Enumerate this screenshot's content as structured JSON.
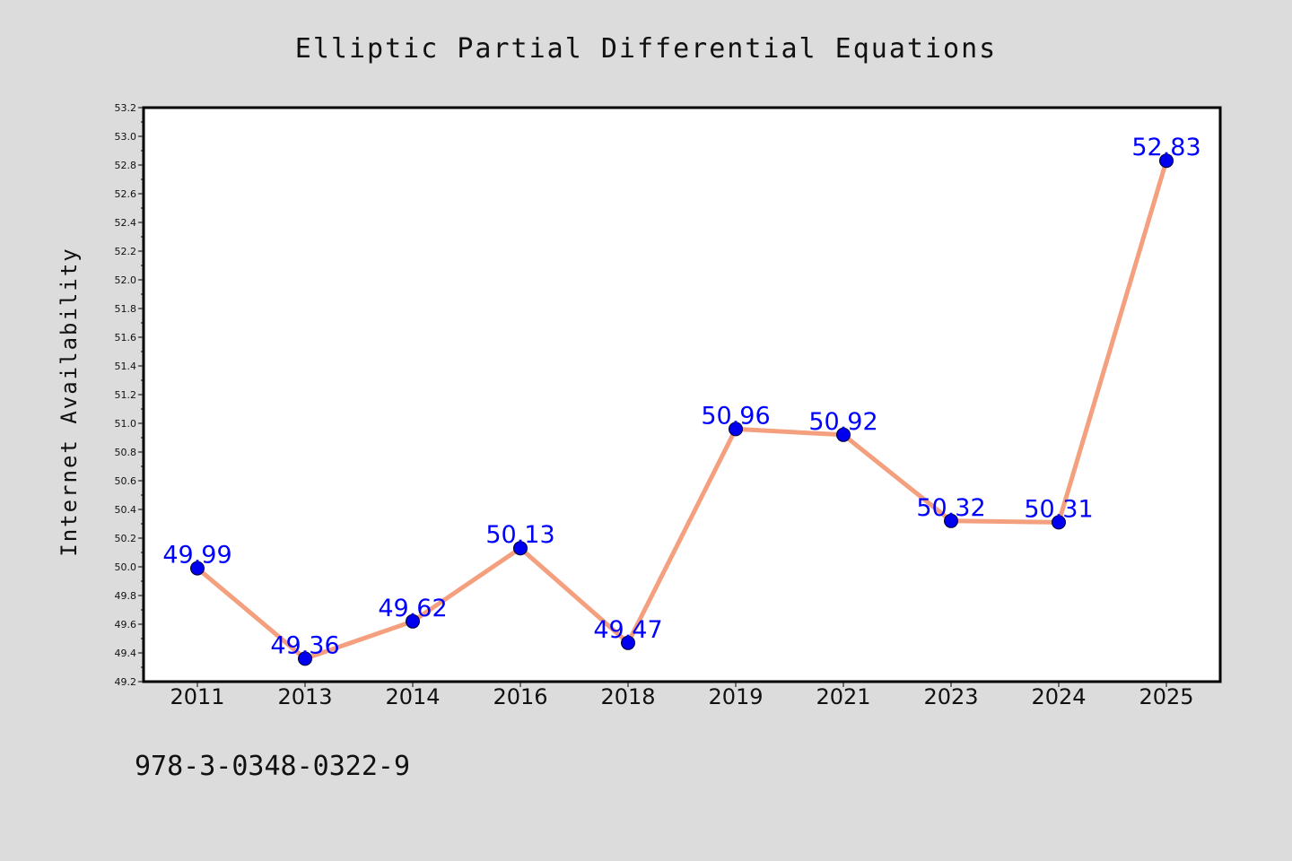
{
  "chart_data": {
    "type": "line",
    "title": "Elliptic Partial Differential Equations",
    "xlabel": "",
    "ylabel": "Internet Availability",
    "categories": [
      "2011",
      "2013",
      "2014",
      "2016",
      "2018",
      "2019",
      "2021",
      "2023",
      "2024",
      "2025"
    ],
    "series": [
      {
        "values": [
          49.99,
          49.36,
          49.62,
          50.13,
          49.47,
          50.96,
          50.92,
          50.32,
          50.31,
          52.83
        ],
        "data_labels": [
          "49.99",
          "49.36",
          "49.62",
          "50.13",
          "49.47",
          "50.96",
          "50.92",
          "50.32",
          "50.31",
          "52.83"
        ]
      }
    ],
    "ylim": [
      49.2,
      53.2
    ],
    "yticks": [
      "49.2",
      "49.4",
      "49.6",
      "49.8",
      "50.0",
      "50.2",
      "50.4",
      "50.6",
      "50.8",
      "51.0",
      "51.2",
      "51.4",
      "51.6",
      "51.8",
      "52.0",
      "52.2",
      "52.4",
      "52.6",
      "52.8",
      "53.0",
      "53.2"
    ],
    "grid": false,
    "legend": "none",
    "colors": {
      "line": "#f4a07e",
      "marker": "#0000ee",
      "label": "#0000ff",
      "plot_bg": "#ffffff",
      "page_bg": "#dcdcdc"
    }
  },
  "footer": {
    "isbn": "978-3-0348-0322-9"
  }
}
